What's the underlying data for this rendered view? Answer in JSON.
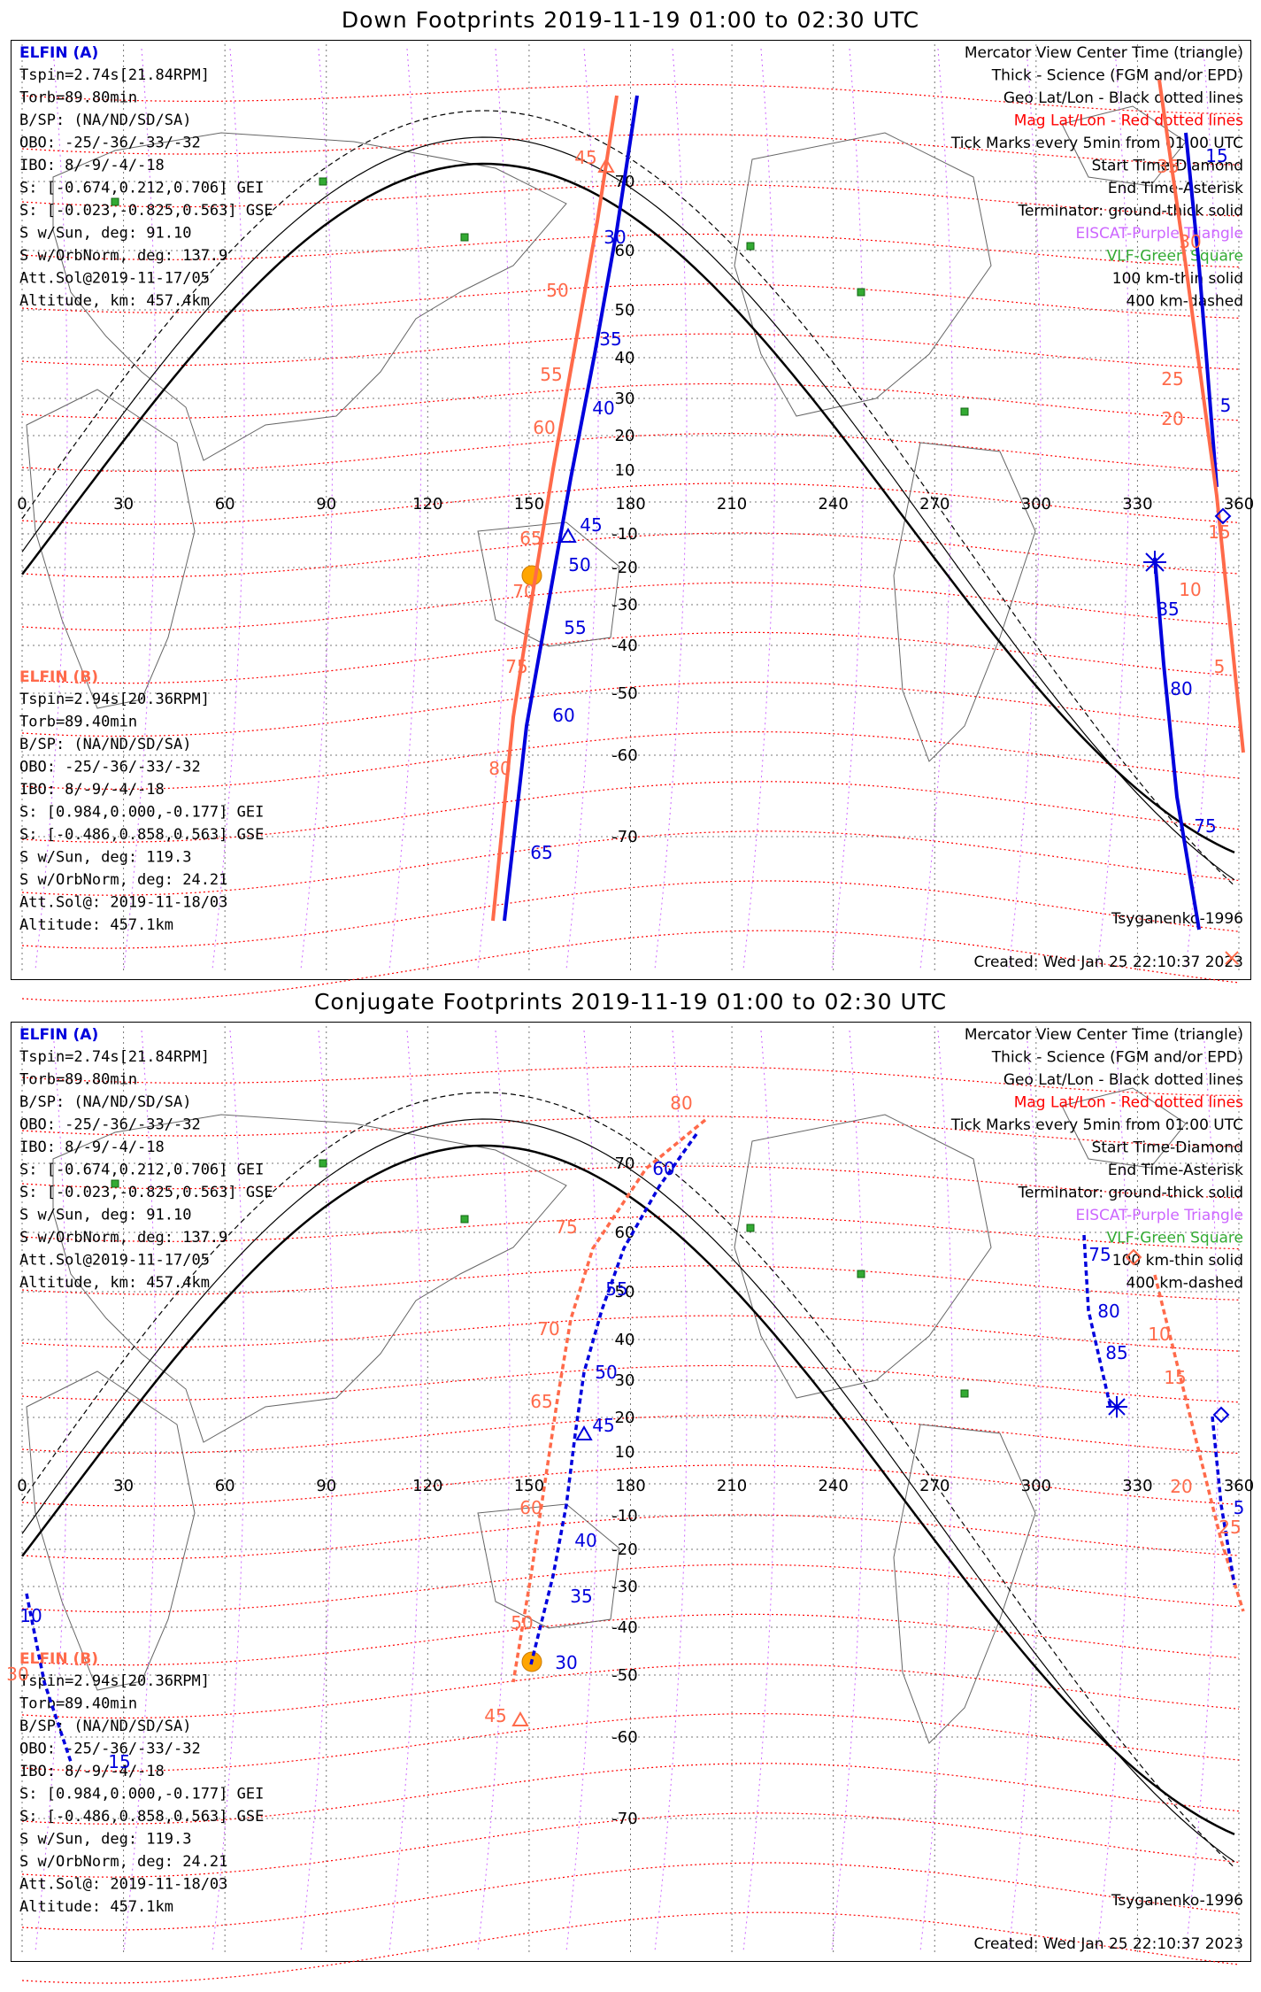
{
  "panels": [
    {
      "title": "Down Footprints 2019-11-19 01:00 to 02:30 UTC",
      "elfin_a": {
        "header": "ELFIN (A)",
        "lines": [
          "Tspin=2.74s[21.84RPM]",
          "Torb=89.80min",
          "B/SP: (NA/ND/SD/SA)",
          "OBO: -25/-36/-33/-32",
          "IBO: 8/-9/-4/-18",
          "S: [-0.674,0.212,0.706] GEI",
          "S: [-0.023,-0.825,0.563] GSE",
          "S w/Sun, deg: 91.10",
          "S w/OrbNorm, deg: 137.9",
          "Att.Sol@2019-11-17/05",
          "Altitude, km: 457.4km"
        ]
      },
      "elfin_b": {
        "header": "ELFIN (B)",
        "lines": [
          "Tspin=2.94s[20.36RPM]",
          "Torb=89.40min",
          "B/SP: (NA/ND/SD/SA)",
          "OBO: -25/-36/-33/-32",
          "IBO: 8/-9/-4/-18",
          "S: [0.984,0.000,-0.177] GEI",
          "S: [-0.486,0.858,0.563] GSE",
          "S w/Sun, deg: 119.3",
          "S w/OrbNorm, deg: 24.21",
          "Att.Sol@: 2019-11-18/03",
          "Altitude: 457.1km"
        ]
      },
      "legend": [
        {
          "text": "Mercator View Center Time (triangle)",
          "color": "#000000"
        },
        {
          "text": "Thick - Science (FGM and/or EPD)",
          "color": "#000000"
        },
        {
          "text": "Geo Lat/Lon - Black dotted lines",
          "color": "#000000"
        },
        {
          "text": "Mag Lat/Lon - Red dotted lines",
          "color": "#ff0000"
        },
        {
          "text": "Tick Marks every 5min from 01:00 UTC",
          "color": "#000000"
        },
        {
          "text": "Start Time-Diamond",
          "color": "#000000"
        },
        {
          "text": "End Time-Asterisk",
          "color": "#000000"
        },
        {
          "text": "Terminator: ground-thick solid",
          "color": "#000000"
        },
        {
          "text": "EISCAT-Purple Triangle",
          "color": "#cc66ff"
        },
        {
          "text": "VLF-Green Square",
          "color": "#33aa33"
        },
        {
          "text": "100 km-thin solid",
          "color": "#000000"
        },
        {
          "text": "400 km-dashed",
          "color": "#000000"
        }
      ],
      "model": "Tsyganenko-1996",
      "created": "Created: Wed Jan 25 22:10:37 2023",
      "track_a": [
        [
          136,
          118
        ],
        [
          132,
          186
        ],
        [
          127,
          250
        ],
        [
          121,
          318
        ],
        [
          115,
          384
        ],
        [
          110,
          420
        ],
        [
          103,
          480
        ],
        [
          94,
          553
        ],
        [
          84,
          620
        ],
        [
          74,
          665
        ],
        [
          62,
          720
        ]
      ],
      "track_b": [
        [
          118,
          118
        ],
        [
          114,
          186
        ],
        [
          108,
          250
        ],
        [
          101,
          318
        ],
        [
          95,
          384
        ],
        [
          88,
          450
        ],
        [
          80,
          520
        ],
        [
          73,
          575
        ],
        [
          66,
          620
        ],
        [
          58,
          660
        ],
        [
          50,
          720
        ]
      ],
      "ticks_a": [
        {
          "lon": 117,
          "lat": 118,
          "label": "30"
        },
        {
          "lon": 117,
          "lat": 240,
          "label": "35"
        },
        {
          "lon": 113,
          "lat": 318,
          "label": "40"
        },
        {
          "lon": 103,
          "lat": 410,
          "label": "45"
        },
        {
          "lon": 105,
          "lat": 455,
          "label": "50"
        },
        {
          "lon": 107,
          "lat": 513,
          "label": "55"
        },
        {
          "lon": 95,
          "lat": 570,
          "label": "60"
        },
        {
          "lon": 60,
          "lat": 690,
          "label": "65"
        }
      ],
      "ticks_b": [
        {
          "lon": 96,
          "lat": 118,
          "label": "45"
        },
        {
          "lon": 92,
          "lat": 200,
          "label": "50"
        },
        {
          "lon": 88,
          "lat": 265,
          "label": "55"
        },
        {
          "lon": 86,
          "lat": 325,
          "label": "60"
        },
        {
          "lon": 80,
          "lat": 390,
          "label": "65"
        },
        {
          "lon": 76,
          "lat": 445,
          "label": "70"
        },
        {
          "lon": 72,
          "lat": 505,
          "label": "75"
        },
        {
          "lon": 66,
          "lat": 580,
          "label": "80"
        }
      ],
      "track_a2": [
        [
          530,
          118
        ],
        [
          544,
          240
        ],
        [
          556,
          330
        ],
        [
          565,
          390
        ]
      ],
      "track_b2": [
        [
          532,
          90
        ],
        [
          548,
          200
        ],
        [
          558,
          340
        ],
        [
          574,
          560
        ]
      ],
      "track_a3": [
        [
          482,
          430
        ],
        [
          488,
          520
        ],
        [
          500,
          620
        ],
        [
          510,
          720
        ]
      ],
      "ticks_a2": [
        {
          "lon": 547,
          "label": "15",
          "y": 283
        },
        {
          "lon": 547,
          "label": "5",
          "y": 328
        }
      ],
      "ticks_b2": [
        {
          "lon": 543,
          "label": "35",
          "y": 130
        },
        {
          "lon": 537,
          "label": "30",
          "y": 203
        },
        {
          "lon": 539,
          "label": "25",
          "y": 305
        },
        {
          "lon": 540,
          "label": "20",
          "y": 340
        },
        {
          "lon": 551,
          "label": "15",
          "y": 425
        },
        {
          "lon": 542,
          "label": "10",
          "y": 472
        },
        {
          "lon": 550,
          "label": "5",
          "y": 530
        }
      ],
      "ticks_a3": [
        {
          "lon": 490,
          "label": "85",
          "y": 487
        },
        {
          "lon": 523,
          "label": "80",
          "y": 553
        },
        {
          "lon": 536,
          "label": "75",
          "y": 655
        }
      ]
    },
    {
      "title": "Conjugate Footprints 2019-11-19 01:00 to 02:30 UTC",
      "elfin_a": {
        "header": "ELFIN (A)",
        "lines": [
          "Tspin=2.74s[21.84RPM]",
          "Torb=89.80min",
          "B/SP: (NA/ND/SD/SA)",
          "OBO: -25/-36/-33/-32",
          "IBO: 8/-9/-4/-18",
          "S: [-0.674,0.212,0.706] GEI",
          "S: [-0.023,-0.825,0.563] GSE",
          "S w/Sun, deg: 91.10",
          "S w/OrbNorm, deg: 137.9",
          "Att.Sol@2019-11-17/05",
          "Altitude, km: 457.4km"
        ]
      },
      "elfin_b": {
        "header": "ELFIN (B)",
        "lines": [
          "Tspin=2.94s[20.36RPM]",
          "Torb=89.40min",
          "B/SP: (NA/ND/SD/SA)",
          "OBO: -25/-36/-33/-32",
          "IBO: 8/-9/-4/-18",
          "S: [0.984,0.000,-0.177] GEI",
          "S: [-0.486,0.858,0.563] GSE",
          "S w/Sun, deg: 119.3",
          "S w/OrbNorm, deg: 24.21",
          "Att.Sol@: 2019-11-18/03",
          "Altitude: 457.1km"
        ]
      },
      "legend": [
        {
          "text": "Mercator View Center Time (triangle)",
          "color": "#000000"
        },
        {
          "text": "Thick - Science (FGM and/or EPD)",
          "color": "#000000"
        },
        {
          "text": "Geo Lat/Lon - Black dotted lines",
          "color": "#000000"
        },
        {
          "text": "Mag Lat/Lon - Red dotted lines",
          "color": "#ff0000"
        },
        {
          "text": "Tick Marks every 5min from 01:00 UTC",
          "color": "#000000"
        },
        {
          "text": "Start Time-Diamond",
          "color": "#000000"
        },
        {
          "text": "End Time-Asterisk",
          "color": "#000000"
        },
        {
          "text": "Terminator: ground-thick solid",
          "color": "#000000"
        },
        {
          "text": "EISCAT-Purple Triangle",
          "color": "#cc66ff"
        },
        {
          "text": "VLF-Green Square",
          "color": "#33aa33"
        },
        {
          "text": "100 km-thin solid",
          "color": "#000000"
        },
        {
          "text": "400 km-dashed",
          "color": "#000000"
        }
      ],
      "model": "Tsyganenko-1996",
      "created": "Created: Wed Jan 25 22:10:37 2023"
    }
  ],
  "axes": {
    "lon_ticks": [
      "0",
      "30",
      "60",
      "90",
      "120",
      "150",
      "180",
      "210",
      "240",
      "270",
      "300",
      "330",
      "360"
    ],
    "lat_ticks": [
      "70",
      "60",
      "50",
      "40",
      "30",
      "20",
      "10",
      "-10",
      "-20",
      "-30",
      "-40",
      "-50",
      "-60",
      "-70"
    ]
  },
  "colors": {
    "elfin_a": "#0000dd",
    "elfin_b": "#ff6a4a",
    "mag_grid": "#ff0000",
    "geo_grid": "#000000",
    "eiscat": "#cc66ff",
    "vlf": "#33aa33",
    "sun": "#ffa500"
  }
}
